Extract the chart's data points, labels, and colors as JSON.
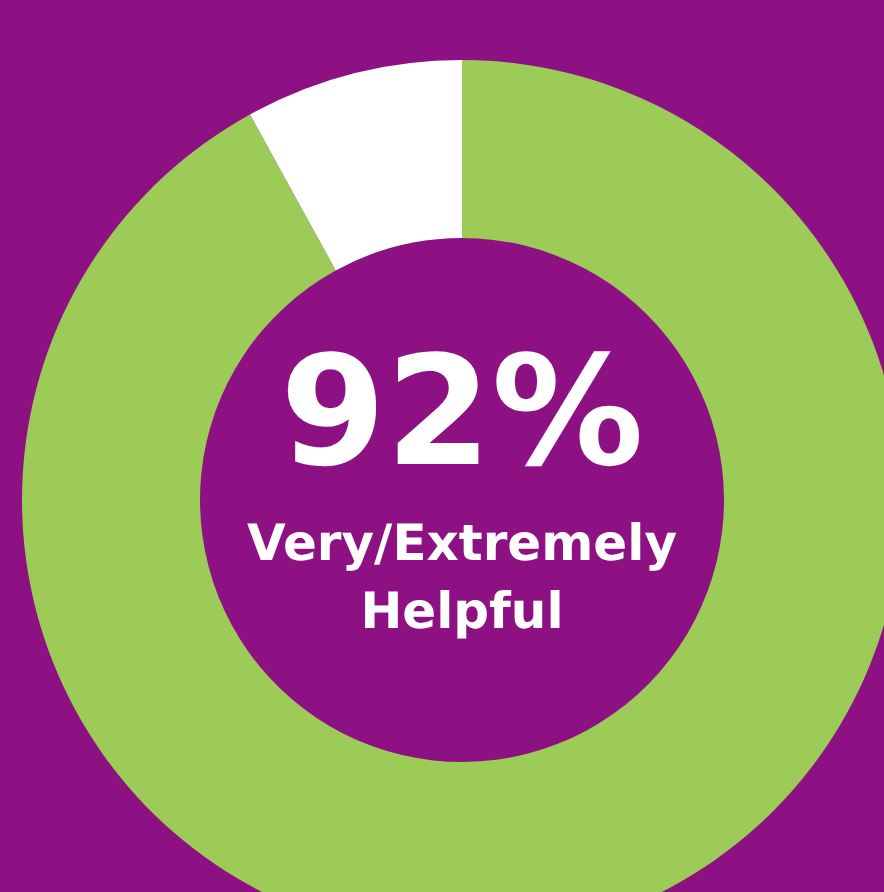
{
  "chart_data": {
    "type": "donut",
    "categories": [
      "Very/Extremely Helpful",
      null
    ],
    "values": [
      92,
      8
    ],
    "colors": [
      "#9ccb57",
      "#ffffff"
    ],
    "value_labels": [
      "92%",
      null
    ],
    "legend": false
  }
}
